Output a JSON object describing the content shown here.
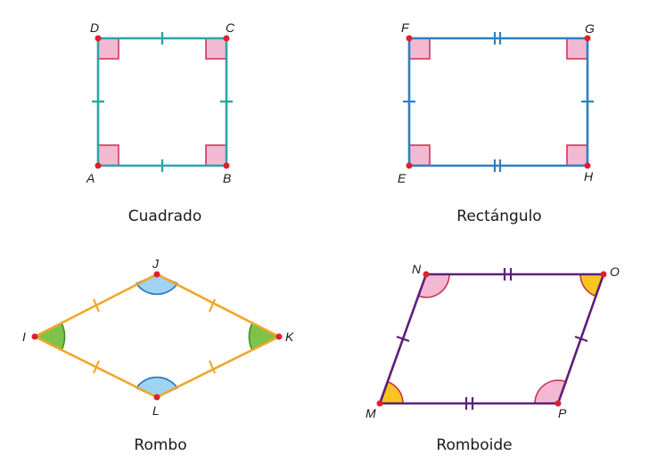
{
  "figures": [
    {
      "id": "square",
      "name": "Cuadrado",
      "vertices": [
        "A",
        "B",
        "C",
        "D"
      ],
      "color": "#2aa6a8"
    },
    {
      "id": "rectangle",
      "name": "Rectángulo",
      "vertices": [
        "E",
        "H",
        "G",
        "F"
      ],
      "color": "#2e7fc2"
    },
    {
      "id": "rhombus",
      "name": "Rombo",
      "vertices": [
        "I",
        "J",
        "K",
        "L"
      ],
      "color": "#f2a52b"
    },
    {
      "id": "rhomboid",
      "name": "Romboide",
      "vertices": [
        "M",
        "N",
        "O",
        "P"
      ],
      "color": "#5c1f7a"
    }
  ],
  "colors": {
    "vertex_dot": "#e0202a",
    "right_angle_fill": "#f3b9d3",
    "right_angle_stroke": "#d6335a",
    "pink_angle": "#f3b9d3",
    "yellow_angle": "#f7c51d",
    "blue_angle": "#9fd4f0",
    "green_angle": "#7fc24a"
  }
}
